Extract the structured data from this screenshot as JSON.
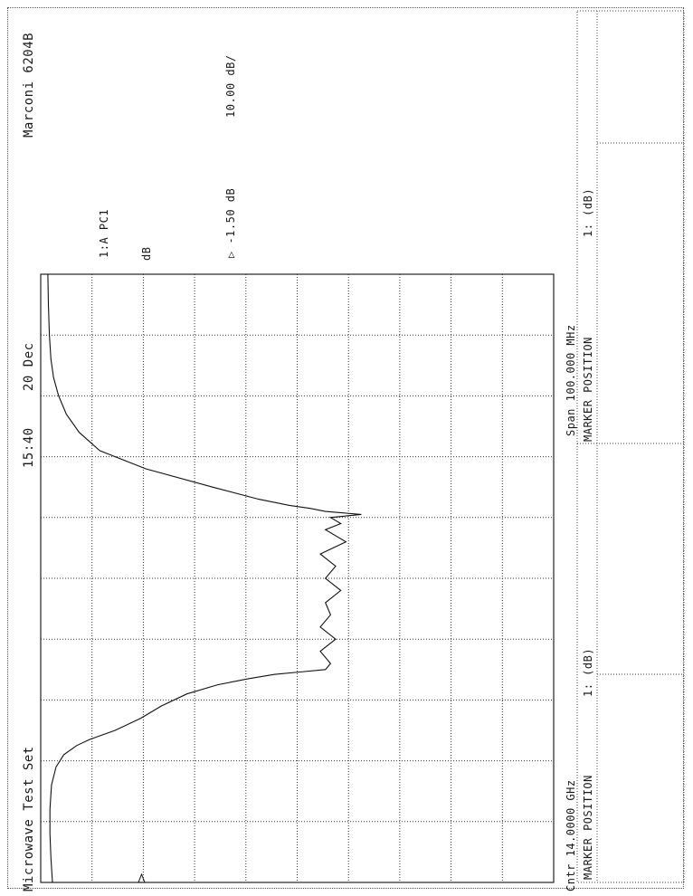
{
  "header": {
    "instrument": "Marconi 6204B",
    "time": "15:40",
    "date": "20 Dec",
    "title": "Microwave Test Set"
  },
  "annotations": {
    "channel": "1:A PC1",
    "units": "dB",
    "reference": "▷ -1.50 dB",
    "scale": "10.00 dB/"
  },
  "footer": {
    "center": "Cntr 14.0000 GHz",
    "span": "Span 100.000 MHz"
  },
  "marker_table": {
    "left_header": "MARKER POSITION",
    "left_col": "1: (dB)",
    "right_header": "MARKER POSITION",
    "right_col": "1: (dB)"
  },
  "chart_data": {
    "type": "line",
    "title": "",
    "x_unit": "MHz",
    "x_center_ghz": 14.0,
    "x_span_mhz": 100.0,
    "xlim": [
      -50,
      50
    ],
    "ylim": [
      -101.5,
      -1.5
    ],
    "reference_level_db": -1.5,
    "scale_db_per_div": 10.0,
    "x_divisions": 10,
    "y_divisions": 10,
    "grid": true,
    "series": [
      {
        "name": "1:A PC1",
        "x": [
          -50,
          -46,
          -42,
          -38,
          -34,
          -31,
          -29,
          -27.5,
          -26.5,
          -25,
          -23,
          -21,
          -19,
          -17.5,
          -16.5,
          -15.8,
          -15.4,
          -15,
          -14,
          -12,
          -10,
          -8,
          -6,
          -4,
          -2,
          0,
          2,
          4,
          6,
          8,
          9,
          10,
          10.5,
          11,
          11.5,
          12,
          13,
          15,
          18,
          21,
          24,
          27,
          30,
          33,
          36,
          40,
          45,
          50
        ],
        "y": [
          -3.8,
          -3.5,
          -3.3,
          -3.3,
          -3.6,
          -4.5,
          -6,
          -8.5,
          -11,
          -16,
          -21,
          -25,
          -30,
          -36,
          -42,
          -47,
          -52,
          -57,
          -58,
          -56,
          -59,
          -56,
          -58,
          -57,
          -60,
          -57,
          -59,
          -56,
          -61,
          -57,
          -60,
          -58,
          -64,
          -57,
          -54,
          -50,
          -44,
          -35,
          -22,
          -13,
          -9,
          -6.5,
          -5,
          -4,
          -3.5,
          -3.2,
          -3,
          -2.9
        ]
      }
    ]
  }
}
